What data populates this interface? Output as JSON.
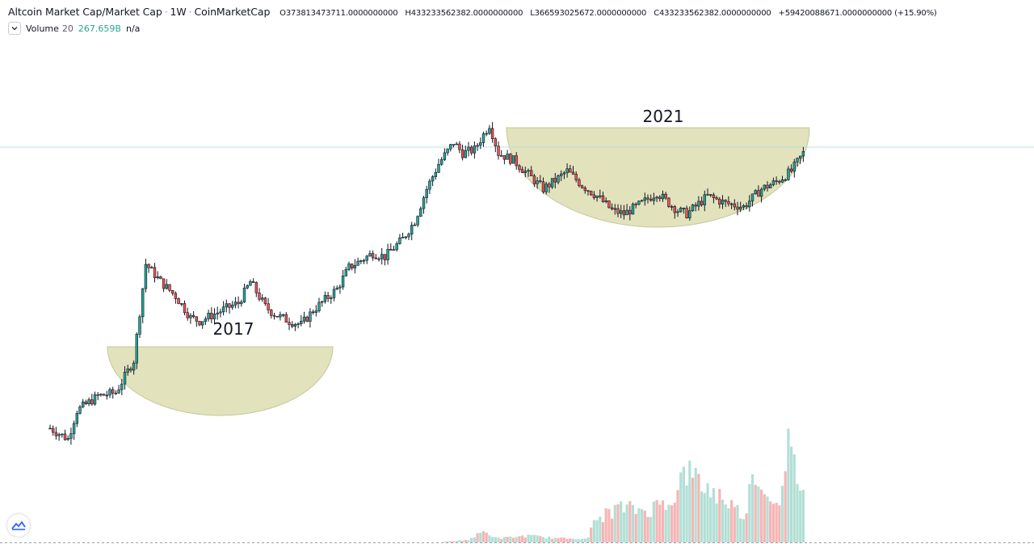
{
  "header": {
    "symbol": "Altcoin Market Cap/Market Cap",
    "interval": "1W",
    "source": "CoinMarketCap",
    "separator": "·",
    "ohlc": {
      "o_label": "O",
      "o_value": "373813473711.0000000000",
      "h_label": "H",
      "h_value": "433233562382.0000000000",
      "l_label": "L",
      "l_value": "366593025672.0000000000",
      "c_label": "C",
      "c_value": "433233562382.0000000000",
      "change": "+59420088671.0000000000 (+15.90%)"
    }
  },
  "volume_legend": {
    "name": "Volume",
    "length": "20",
    "value": "267.659B",
    "na": "n/a"
  },
  "colors": {
    "up": "#26a69a",
    "down": "#ef5350",
    "volume_up": "#b2dfd5",
    "volume_down": "#f6b5b5",
    "cup_fill": "#e2e2bd",
    "cup_stroke": "#c5c79a",
    "price_line": "#b2e4e0"
  },
  "chart_data": {
    "type": "candlestick",
    "interval": "1W",
    "ylim": [
      0,
      100
    ],
    "anchors_x": [
      0,
      6,
      9,
      16,
      22,
      28,
      32,
      34,
      37,
      42,
      47,
      50,
      55,
      60,
      63,
      67,
      72,
      75,
      80,
      84,
      88,
      92,
      96,
      100,
      104,
      108,
      112,
      118,
      122,
      126,
      130,
      135,
      138,
      142,
      147,
      150,
      155,
      160,
      165,
      170,
      173,
      178,
      183,
      188,
      192,
      198,
      203,
      207,
      210,
      213,
      220,
      226,
      232,
      238,
      243,
      248,
      252
    ],
    "anchors_y": [
      17,
      14,
      22,
      26,
      27,
      36,
      63,
      61,
      58,
      54,
      48,
      47,
      49,
      51,
      52,
      58,
      51,
      49,
      47,
      46,
      50,
      53,
      56,
      62,
      64,
      66,
      65,
      70,
      75,
      84,
      91,
      97,
      94,
      95,
      102,
      94,
      92,
      88,
      84,
      87,
      89,
      85,
      82,
      78,
      77,
      80,
      83,
      80,
      78,
      77,
      82,
      80,
      79,
      84,
      86,
      89,
      94
    ],
    "volume_x": [
      0,
      130,
      140,
      145,
      150,
      160,
      170,
      180,
      182,
      190,
      200,
      210,
      212,
      220,
      225,
      232,
      236,
      240,
      245,
      247,
      250,
      252
    ],
    "volume_y": [
      0,
      0,
      2,
      8,
      3,
      5,
      3,
      3,
      16,
      26,
      24,
      36,
      55,
      40,
      34,
      20,
      55,
      34,
      36,
      70,
      50,
      40
    ],
    "annotations": [
      "2017",
      "2021"
    ],
    "price_line_level": 95.7
  }
}
